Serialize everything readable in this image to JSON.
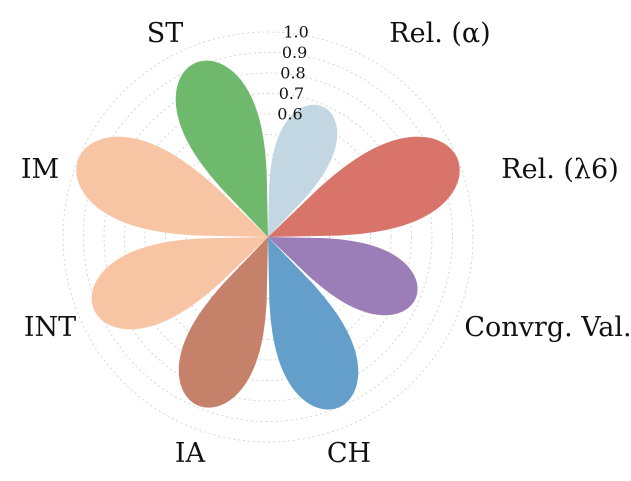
{
  "chart_data": {
    "type": "radar-petal",
    "categories": [
      {
        "label": "ST",
        "value": 0.92,
        "color": "#6fb96d"
      },
      {
        "label": "Rel. (α)",
        "value": 0.69,
        "color": "#c3d7e2"
      },
      {
        "label": "Rel. (λ6)",
        "value": 1.0,
        "color": "#d8746a"
      },
      {
        "label": "Convrg. Val.",
        "value": 0.78,
        "color": "#9b7eb8"
      },
      {
        "label": "CH",
        "value": 0.9,
        "color": "#649fcb"
      },
      {
        "label": "IA",
        "value": 0.89,
        "color": "#c6816b"
      },
      {
        "label": "INT",
        "value": 0.92,
        "color": "#f8c5a4"
      },
      {
        "label": "IM",
        "value": 1.0,
        "color": "#f8c5a4"
      }
    ],
    "radial_ticks": [
      "1.0",
      "0.9",
      "0.8",
      "0.7",
      "0.6"
    ],
    "radial_tick_values": [
      1.0,
      0.9,
      0.8,
      0.7,
      0.6
    ],
    "rlim": [
      0.0,
      1.0
    ],
    "grid": true
  }
}
